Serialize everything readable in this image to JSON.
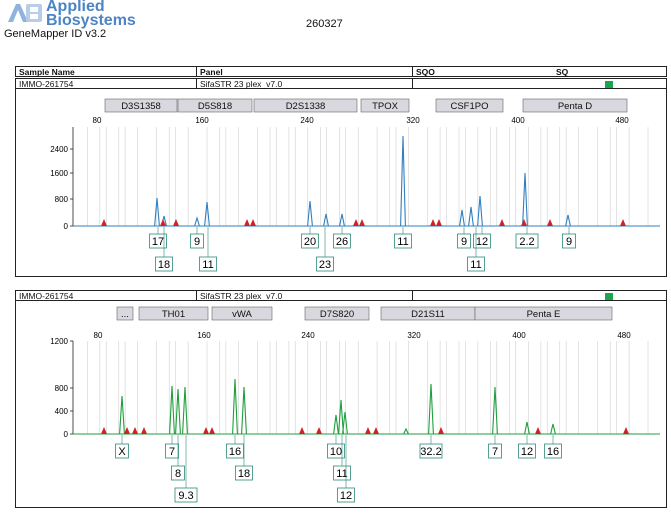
{
  "header": {
    "brand_line1": "Applied",
    "brand_line2": "Biosystems",
    "product": "GeneMapper ID v3.2",
    "run_id": "260327"
  },
  "table": {
    "col_sample": "Sample Name",
    "col_panel": "Panel",
    "col_sqo": "SQO",
    "col_sq": "SQ"
  },
  "panels": [
    {
      "sample": "IMMO-261754",
      "panel": "SifaSTR 23 plex_v7.0",
      "status_color": "#1ca64c",
      "trace_color": "#2f7fc1",
      "x_ticks": [
        "80",
        "160",
        "240",
        "320",
        "400",
        "480"
      ],
      "y_ticks": [
        "2400",
        "1600",
        "800",
        "0"
      ],
      "loci": [
        "D3S1358",
        "D5S818",
        "D2S1338",
        "TPOX",
        "CSF1PO",
        "Penta D"
      ],
      "alleles_row1": [
        "17",
        "9",
        "20",
        "26",
        "11",
        "9",
        "12",
        "2.2",
        "9"
      ],
      "alleles_row2": [
        "18",
        "11",
        "23",
        "11"
      ]
    },
    {
      "sample": "IMMO-261754",
      "panel": "SifaSTR 23 plex_v7.0",
      "status_color": "#1ca64c",
      "trace_color": "#1f9e3c",
      "x_ticks": [
        "80",
        "160",
        "240",
        "320",
        "400",
        "480"
      ],
      "y_ticks": [
        "1200",
        "800",
        "400",
        "0"
      ],
      "loci": [
        "...",
        "TH01",
        "vWA",
        "D7S820",
        "D21S11",
        "Penta E"
      ],
      "alleles_row1": [
        "X",
        "7",
        "16",
        "10",
        "32.2",
        "7",
        "12",
        "16"
      ],
      "alleles_row2": [
        "8",
        "18",
        "11"
      ],
      "alleles_row3": [
        "9.3",
        "12"
      ]
    }
  ]
}
